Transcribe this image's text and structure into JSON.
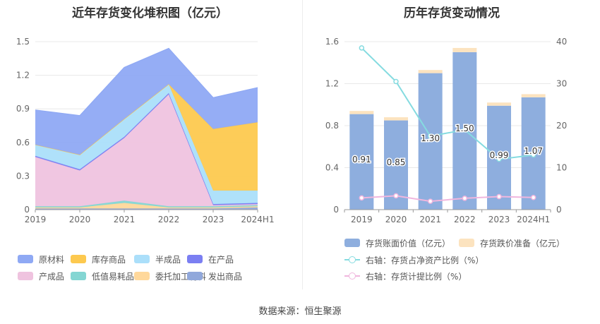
{
  "source_text": "数据来源：恒生聚源",
  "chart_data": [
    {
      "type": "area",
      "stacked": true,
      "title": "近年存货变化堆积图（亿元）",
      "categories": [
        "2019",
        "2020",
        "2021",
        "2022",
        "2023",
        "2024H1"
      ],
      "ylim": [
        0,
        1.5
      ],
      "yticks": [
        "0",
        "0.3",
        "0.6",
        "0.9",
        "1.2",
        "1.5"
      ],
      "grid": true,
      "legend_position": "bottom",
      "series": [
        {
          "name": "原材料",
          "color": "#8fa9f4",
          "values": [
            0.31,
            0.35,
            0.46,
            0.32,
            0.28,
            0.31
          ]
        },
        {
          "name": "库存商品",
          "color": "#fdc94f",
          "values": [
            0.0,
            0.0,
            0.0,
            0.0,
            0.55,
            0.61
          ]
        },
        {
          "name": "半成品",
          "color": "#abdffa",
          "values": [
            0.1,
            0.13,
            0.16,
            0.08,
            0.12,
            0.11
          ]
        },
        {
          "name": "在产品",
          "color": "#7b7ff2",
          "values": [
            0.01,
            0.01,
            0.01,
            0.01,
            0.01,
            0.01
          ]
        },
        {
          "name": "产成品",
          "color": "#efc3df",
          "values": [
            0.44,
            0.32,
            0.56,
            1.0,
            0.01,
            0.01
          ]
        },
        {
          "name": "低值易耗品",
          "color": "#84d6d3",
          "values": [
            0.01,
            0.01,
            0.02,
            0.01,
            0.01,
            0.01
          ]
        },
        {
          "name": "委托加工材料",
          "color": "#ffd89b",
          "values": [
            0.01,
            0.01,
            0.05,
            0.01,
            0.01,
            0.01
          ]
        },
        {
          "name": "发出商品",
          "color": "#91a8db",
          "values": [
            0.01,
            0.01,
            0.01,
            0.01,
            0.01,
            0.02
          ]
        }
      ],
      "stack_order_bottom_to_top": [
        "发出商品",
        "委托加工材料",
        "低值易耗品",
        "产成品",
        "在产品",
        "半成品",
        "库存商品",
        "原材料"
      ]
    },
    {
      "type": "bar",
      "stacked": true,
      "title": "历年存货变动情况",
      "categories": [
        "2019",
        "2020",
        "2021",
        "2022",
        "2023",
        "2024H1"
      ],
      "ylim": [
        0,
        1.6
      ],
      "yticks": [
        "0",
        "0.4",
        "0.8",
        "1.2",
        "1.6"
      ],
      "y2lim": [
        0,
        40
      ],
      "y2ticks": [
        "0",
        "10",
        "20",
        "30",
        "40"
      ],
      "grid": true,
      "legend_position": "bottom",
      "series": [
        {
          "name": "存货账面价值（亿元）",
          "kind": "bar",
          "color": "#8eaede",
          "values": [
            0.91,
            0.85,
            1.3,
            1.5,
            0.99,
            1.07
          ],
          "labels": [
            "0.91",
            "0.85",
            "1.30",
            "1.50",
            "0.99",
            "1.07"
          ]
        },
        {
          "name": "存货跌价准备（亿元）",
          "kind": "bar",
          "color": "#fce3bf",
          "values": [
            0.03,
            0.03,
            0.03,
            0.04,
            0.03,
            0.03
          ]
        },
        {
          "name": "右轴：存货占净资产比例（%）",
          "kind": "line",
          "axis": "right",
          "color": "#85dbe0",
          "values": [
            38.5,
            30.5,
            17.5,
            19.0,
            12.0,
            13.0
          ]
        },
        {
          "name": "右轴：存货计提比例（%）",
          "kind": "line",
          "axis": "right",
          "color": "#f0b6de",
          "values": [
            2.8,
            3.3,
            2.0,
            2.7,
            3.1,
            2.9
          ]
        }
      ]
    }
  ]
}
